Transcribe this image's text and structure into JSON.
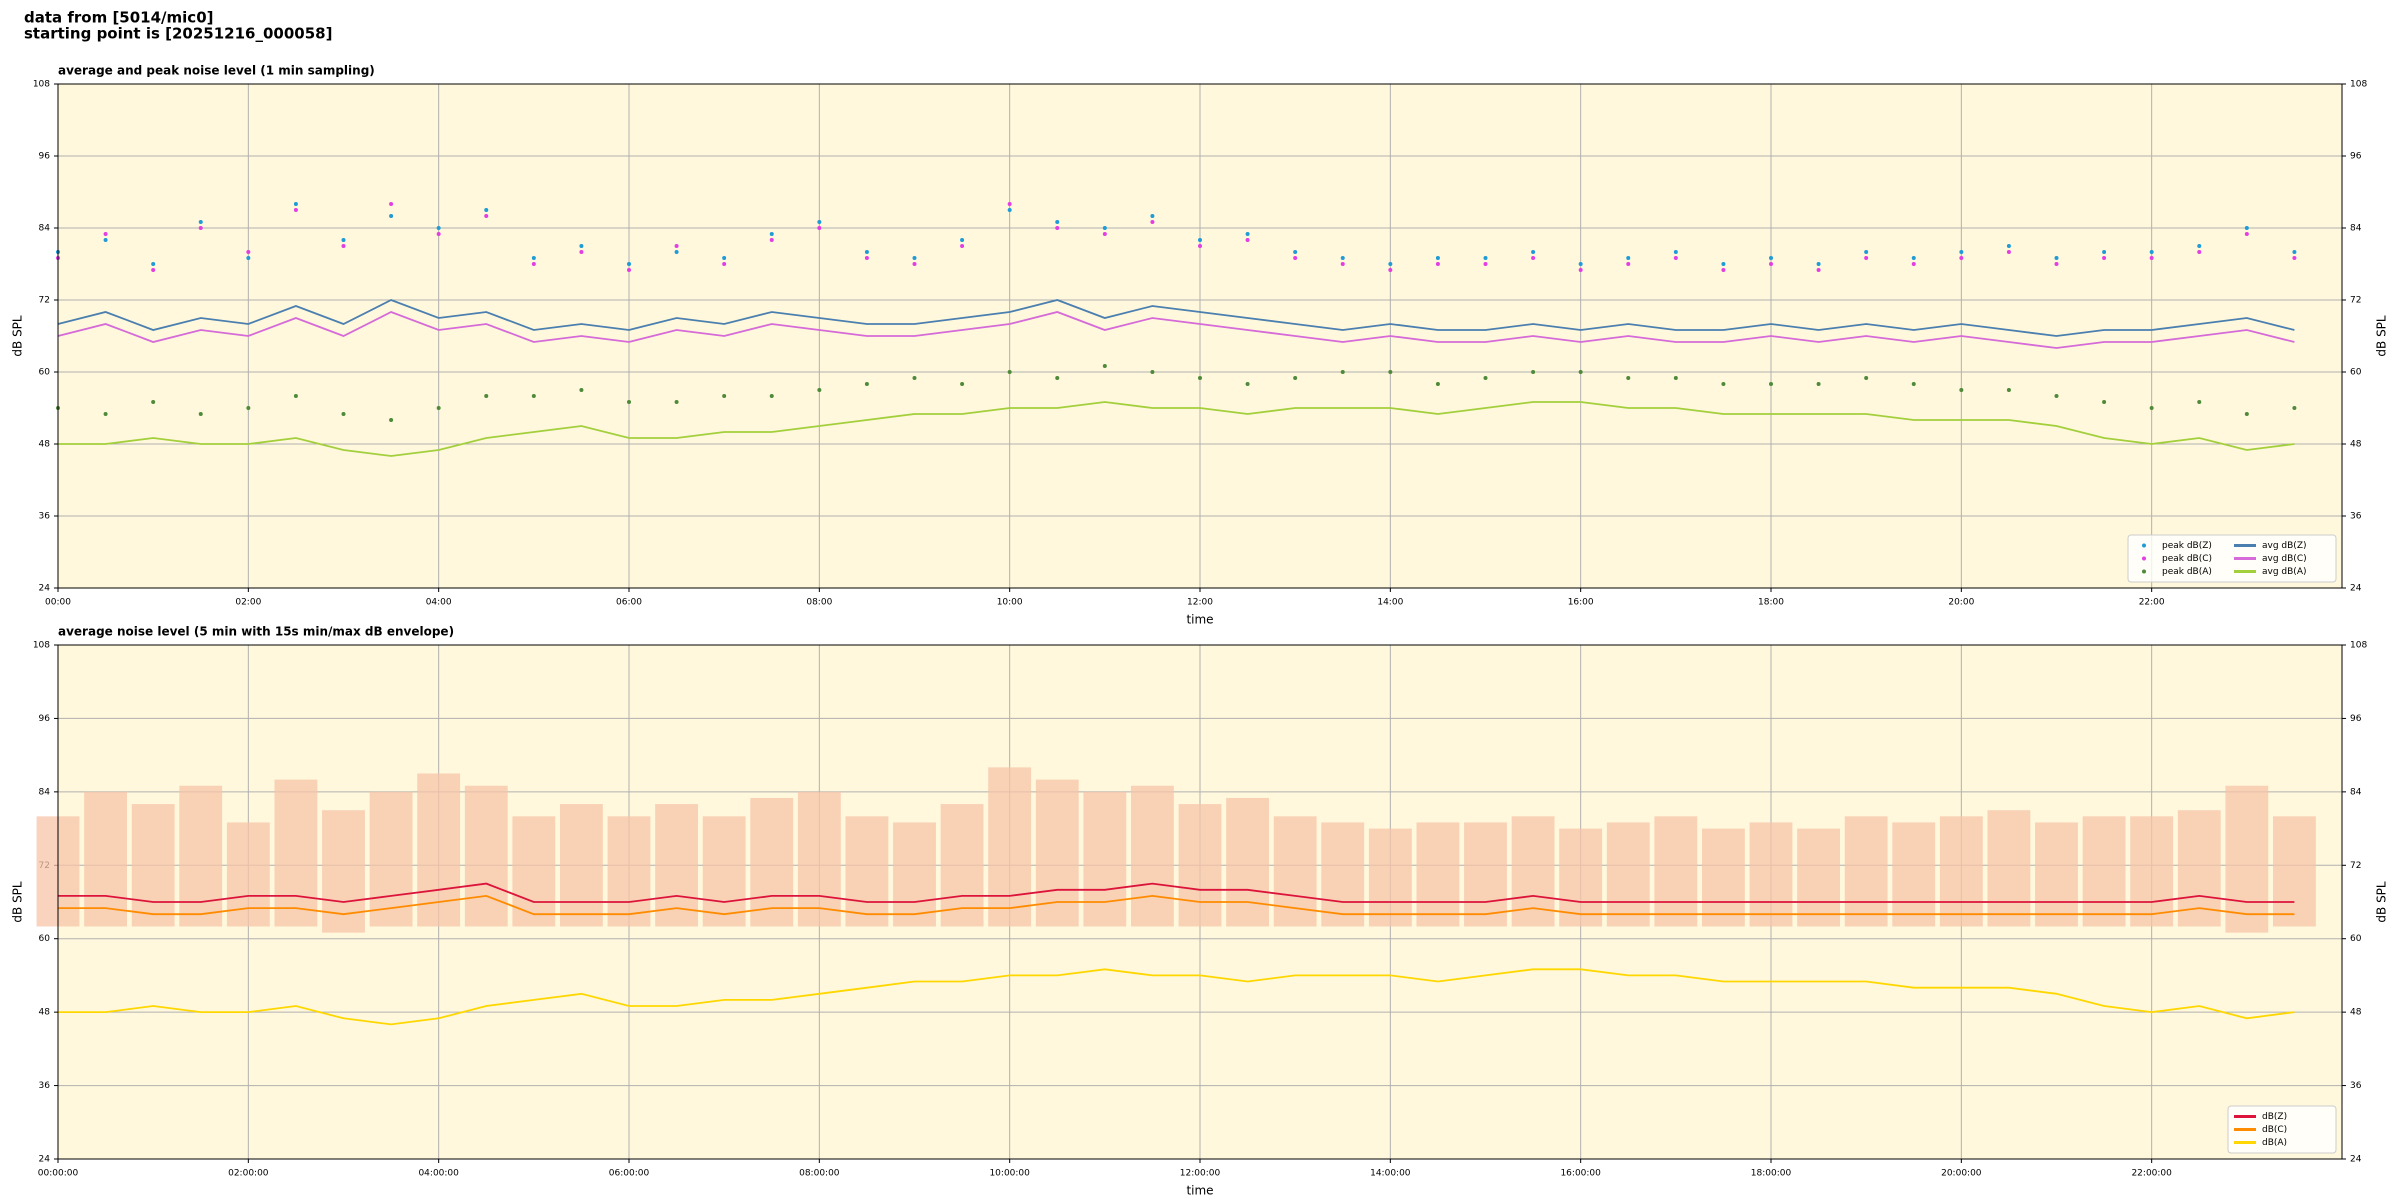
{
  "header": {
    "line1": "data from [5014/mic0]",
    "line2": "starting point is [20251216_000058]"
  },
  "chart_data": [
    {
      "type": "line",
      "title": "average and peak noise level (1 min sampling)",
      "x_label": "time",
      "y_label": "dB SPL",
      "y2_label": "dB SPL",
      "xlim": [
        0,
        24
      ],
      "ylim": [
        24,
        108
      ],
      "xticks": [
        {
          "value": 0,
          "label": "00:00"
        },
        {
          "value": 2,
          "label": "02:00"
        },
        {
          "value": 4,
          "label": "04:00"
        },
        {
          "value": 6,
          "label": "06:00"
        },
        {
          "value": 8,
          "label": "08:00"
        },
        {
          "value": 10,
          "label": "10:00"
        },
        {
          "value": 12,
          "label": "12:00"
        },
        {
          "value": 14,
          "label": "14:00"
        },
        {
          "value": 16,
          "label": "16:00"
        },
        {
          "value": 18,
          "label": "18:00"
        },
        {
          "value": 20,
          "label": "20:00"
        },
        {
          "value": 22,
          "label": "22:00"
        }
      ],
      "yticks": [
        24,
        36,
        48,
        60,
        72,
        84,
        96,
        108
      ],
      "grid": true,
      "background": "#fff8dc",
      "legend": "lower right",
      "legend_columns": 2,
      "x": [
        0,
        0.5,
        1,
        1.5,
        2,
        2.5,
        3,
        3.5,
        4,
        4.5,
        5,
        5.5,
        6,
        6.5,
        7,
        7.5,
        8,
        8.5,
        9,
        9.5,
        10,
        10.5,
        11,
        11.5,
        12,
        12.5,
        13,
        13.5,
        14,
        14.5,
        15,
        15.5,
        16,
        16.5,
        17,
        17.5,
        18,
        18.5,
        19,
        19.5,
        20,
        20.5,
        21,
        21.5,
        22,
        22.5,
        23,
        23.5
      ],
      "series": [
        {
          "name": "peak dB(Z)",
          "kind": "scatter",
          "color": "#1f9bd8",
          "values": [
            80,
            82,
            78,
            85,
            79,
            88,
            82,
            86,
            84,
            87,
            79,
            81,
            78,
            80,
            79,
            83,
            85,
            80,
            79,
            82,
            87,
            85,
            84,
            86,
            82,
            83,
            80,
            79,
            78,
            79,
            79,
            80,
            78,
            79,
            80,
            78,
            79,
            78,
            80,
            79,
            80,
            81,
            79,
            80,
            80,
            81,
            84,
            80
          ]
        },
        {
          "name": "peak dB(C)",
          "kind": "scatter",
          "color": "#e33ee3",
          "values": [
            79,
            83,
            77,
            84,
            80,
            87,
            81,
            88,
            83,
            86,
            78,
            80,
            77,
            81,
            78,
            82,
            84,
            79,
            78,
            81,
            88,
            84,
            83,
            85,
            81,
            82,
            79,
            78,
            77,
            78,
            78,
            79,
            77,
            78,
            79,
            77,
            78,
            77,
            79,
            78,
            79,
            80,
            78,
            79,
            79,
            80,
            83,
            79
          ]
        },
        {
          "name": "peak dB(A)",
          "kind": "scatter",
          "color": "#4e8a3a",
          "values": [
            54,
            53,
            55,
            53,
            54,
            56,
            53,
            52,
            54,
            56,
            56,
            57,
            55,
            55,
            56,
            56,
            57,
            58,
            59,
            58,
            60,
            59,
            61,
            60,
            59,
            58,
            59,
            60,
            60,
            58,
            59,
            60,
            60,
            59,
            59,
            58,
            58,
            58,
            59,
            58,
            57,
            57,
            56,
            55,
            54,
            55,
            53,
            54
          ]
        },
        {
          "name": "avg dB(Z)",
          "kind": "line",
          "color": "#4a7fb0",
          "values": [
            68,
            70,
            67,
            69,
            68,
            71,
            68,
            72,
            69,
            70,
            67,
            68,
            67,
            69,
            68,
            70,
            69,
            68,
            68,
            69,
            70,
            72,
            69,
            71,
            70,
            69,
            68,
            67,
            68,
            67,
            67,
            68,
            67,
            68,
            67,
            67,
            68,
            67,
            68,
            67,
            68,
            67,
            66,
            67,
            67,
            68,
            69,
            67
          ]
        },
        {
          "name": "avg dB(C)",
          "kind": "line",
          "color": "#d56ad8",
          "values": [
            66,
            68,
            65,
            67,
            66,
            69,
            66,
            70,
            67,
            68,
            65,
            66,
            65,
            67,
            66,
            68,
            67,
            66,
            66,
            67,
            68,
            70,
            67,
            69,
            68,
            67,
            66,
            65,
            66,
            65,
            65,
            66,
            65,
            66,
            65,
            65,
            66,
            65,
            66,
            65,
            66,
            65,
            64,
            65,
            65,
            66,
            67,
            65
          ]
        },
        {
          "name": "avg dB(A)",
          "kind": "line",
          "color": "#a3cf3c",
          "values": [
            48,
            48,
            49,
            48,
            48,
            49,
            47,
            46,
            47,
            49,
            50,
            51,
            49,
            49,
            50,
            50,
            51,
            52,
            53,
            53,
            54,
            54,
            55,
            54,
            54,
            53,
            54,
            54,
            54,
            53,
            54,
            55,
            55,
            54,
            54,
            53,
            53,
            53,
            53,
            52,
            52,
            52,
            51,
            49,
            48,
            49,
            47,
            48
          ]
        }
      ]
    },
    {
      "type": "line",
      "title": "average noise level (5 min with 15s min/max dB envelope)",
      "x_label": "time",
      "y_label": "dB SPL",
      "y2_label": "dB SPL",
      "xlim": [
        0,
        24
      ],
      "ylim": [
        24,
        108
      ],
      "xticks": [
        {
          "value": 0,
          "label": "00:00:00"
        },
        {
          "value": 2,
          "label": "02:00:00"
        },
        {
          "value": 4,
          "label": "04:00:00"
        },
        {
          "value": 6,
          "label": "06:00:00"
        },
        {
          "value": 8,
          "label": "08:00:00"
        },
        {
          "value": 10,
          "label": "10:00:00"
        },
        {
          "value": 12,
          "label": "12:00:00"
        },
        {
          "value": 14,
          "label": "14:00:00"
        },
        {
          "value": 16,
          "label": "16:00:00"
        },
        {
          "value": 18,
          "label": "18:00:00"
        },
        {
          "value": 20,
          "label": "20:00:00"
        },
        {
          "value": 22,
          "label": "22:00:00"
        }
      ],
      "yticks": [
        24,
        36,
        48,
        60,
        72,
        84,
        96,
        108
      ],
      "grid": true,
      "background": "#fff8dc",
      "legend": "lower right",
      "legend_columns": 1,
      "x": [
        0,
        0.5,
        1,
        1.5,
        2,
        2.5,
        3,
        3.5,
        4,
        4.5,
        5,
        5.5,
        6,
        6.5,
        7,
        7.5,
        8,
        8.5,
        9,
        9.5,
        10,
        10.5,
        11,
        11.5,
        12,
        12.5,
        13,
        13.5,
        14,
        14.5,
        15,
        15.5,
        16,
        16.5,
        17,
        17.5,
        18,
        18.5,
        19,
        19.5,
        20,
        20.5,
        21,
        21.5,
        22,
        22.5,
        23,
        23.5
      ],
      "envelope": {
        "color": "#f7c4a8",
        "low": [
          62,
          62,
          62,
          62,
          62,
          62,
          61,
          62,
          62,
          62,
          62,
          62,
          62,
          62,
          62,
          62,
          62,
          62,
          62,
          62,
          62,
          62,
          62,
          62,
          62,
          62,
          62,
          62,
          62,
          62,
          62,
          62,
          62,
          62,
          62,
          62,
          62,
          62,
          62,
          62,
          62,
          62,
          62,
          62,
          62,
          62,
          61,
          62
        ],
        "high": [
          80,
          84,
          82,
          85,
          79,
          86,
          81,
          84,
          87,
          85,
          80,
          82,
          80,
          82,
          80,
          83,
          84,
          80,
          79,
          82,
          88,
          86,
          84,
          85,
          82,
          83,
          80,
          79,
          78,
          79,
          79,
          80,
          78,
          79,
          80,
          78,
          79,
          78,
          80,
          79,
          80,
          81,
          79,
          80,
          80,
          81,
          85,
          80
        ]
      },
      "series": [
        {
          "name": "dB(Z)",
          "kind": "line",
          "color": "#dc143c",
          "values": [
            67,
            67,
            66,
            66,
            67,
            67,
            66,
            67,
            68,
            69,
            66,
            66,
            66,
            67,
            66,
            67,
            67,
            66,
            66,
            67,
            67,
            68,
            68,
            69,
            68,
            68,
            67,
            66,
            66,
            66,
            66,
            67,
            66,
            66,
            66,
            66,
            66,
            66,
            66,
            66,
            66,
            66,
            66,
            66,
            66,
            67,
            66,
            66
          ]
        },
        {
          "name": "dB(C)",
          "kind": "line",
          "color": "#ff8c00",
          "values": [
            65,
            65,
            64,
            64,
            65,
            65,
            64,
            65,
            66,
            67,
            64,
            64,
            64,
            65,
            64,
            65,
            65,
            64,
            64,
            65,
            65,
            66,
            66,
            67,
            66,
            66,
            65,
            64,
            64,
            64,
            64,
            65,
            64,
            64,
            64,
            64,
            64,
            64,
            64,
            64,
            64,
            64,
            64,
            64,
            64,
            65,
            64,
            64
          ]
        },
        {
          "name": "dB(A)",
          "kind": "line",
          "color": "#ffd700",
          "values": [
            48,
            48,
            49,
            48,
            48,
            49,
            47,
            46,
            47,
            49,
            50,
            51,
            49,
            49,
            50,
            50,
            51,
            52,
            53,
            53,
            54,
            54,
            55,
            54,
            54,
            53,
            54,
            54,
            54,
            53,
            54,
            55,
            55,
            54,
            54,
            53,
            53,
            53,
            53,
            52,
            52,
            52,
            51,
            49,
            48,
            49,
            47,
            48
          ]
        }
      ]
    }
  ]
}
